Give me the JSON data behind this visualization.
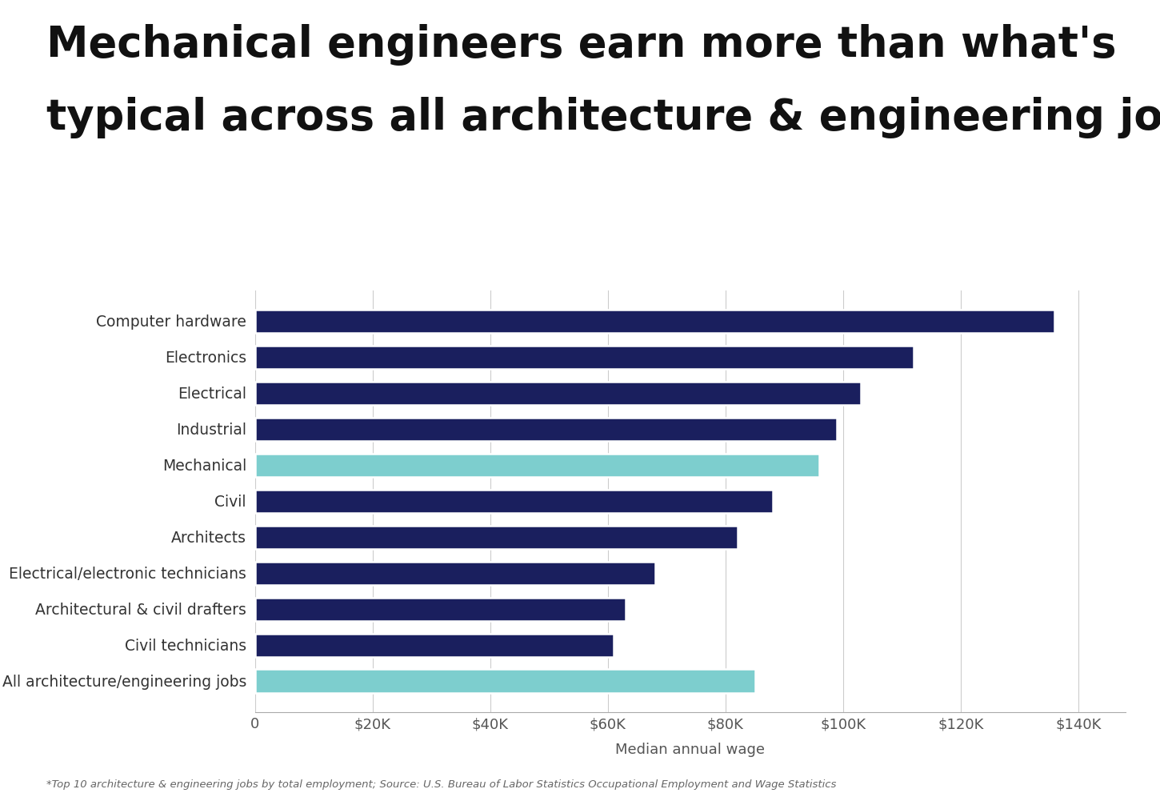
{
  "title_line1": "Mechanical engineers earn more than what's",
  "title_line2": "typical across all architecture & engineering jobs",
  "categories": [
    "All architecture/engineering jobs",
    "Civil technicians",
    "Architectural & civil drafters",
    "Electrical/electronic technicians",
    "Architects",
    "Civil",
    "Mechanical",
    "Industrial",
    "Electrical",
    "Electronics",
    "Computer hardware"
  ],
  "values": [
    85000,
    61000,
    63000,
    68000,
    82000,
    88000,
    96000,
    99000,
    103000,
    112000,
    136000
  ],
  "colors": [
    "#7dcece",
    "#1a1f5e",
    "#1a1f5e",
    "#1a1f5e",
    "#1a1f5e",
    "#1a1f5e",
    "#7dcece",
    "#1a1f5e",
    "#1a1f5e",
    "#1a1f5e",
    "#1a1f5e"
  ],
  "xlabel": "Median annual wage",
  "xlim": [
    0,
    148000
  ],
  "xticks": [
    0,
    20000,
    40000,
    60000,
    80000,
    100000,
    120000,
    140000
  ],
  "xtick_labels": [
    "0",
    "$20K",
    "$40K",
    "$60K",
    "$80K",
    "$100K",
    "$120K",
    "$140K"
  ],
  "background_color": "#ffffff",
  "title_fontsize": 38,
  "footnote": "*Top 10 architecture & engineering jobs by total employment; Source: U.S. Bureau of Labor Statistics Occupational Employment and Wage Statistics"
}
